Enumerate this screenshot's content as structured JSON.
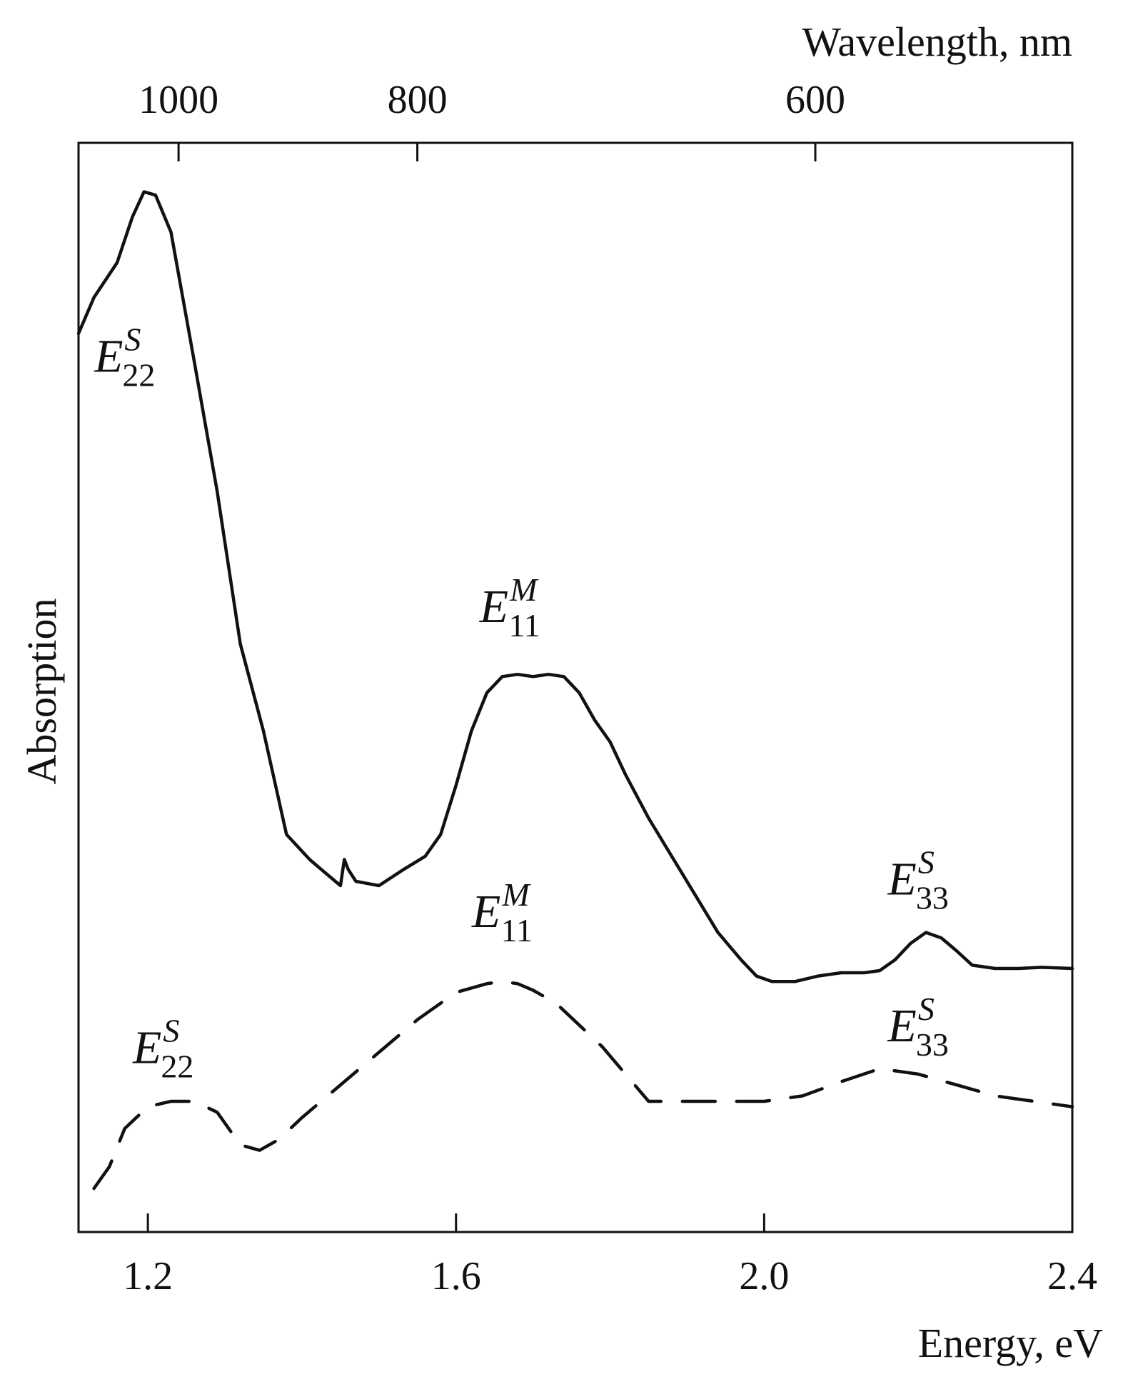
{
  "chart_data": {
    "type": "line",
    "xlabel": "Energy, eV",
    "ylabel": "Absorption",
    "top_axis_label": "Wavelength, nm",
    "xlim": [
      1.11,
      2.4
    ],
    "ylim": [
      0,
      1
    ],
    "x_ticks": [
      "1.2",
      "1.6",
      "2.0",
      "2.4"
    ],
    "x_tick_values": [
      1.2,
      1.6,
      2.0,
      2.4
    ],
    "top_ticks": [
      "1000",
      "800",
      "600"
    ],
    "top_tick_values_nm": [
      1000,
      800,
      600
    ],
    "grid": false,
    "series": [
      {
        "style": "solid",
        "color": "#111111",
        "x": [
          1.11,
          1.13,
          1.16,
          1.18,
          1.195,
          1.21,
          1.23,
          1.26,
          1.29,
          1.32,
          1.35,
          1.38,
          1.41,
          1.43,
          1.45,
          1.455,
          1.46,
          1.47,
          1.5,
          1.53,
          1.56,
          1.58,
          1.6,
          1.62,
          1.64,
          1.66,
          1.68,
          1.7,
          1.72,
          1.74,
          1.76,
          1.78,
          1.8,
          1.82,
          1.85,
          1.88,
          1.91,
          1.94,
          1.97,
          1.99,
          2.01,
          2.04,
          2.07,
          2.1,
          2.13,
          2.15,
          2.17,
          2.19,
          2.21,
          2.23,
          2.25,
          2.27,
          2.3,
          2.33,
          2.36,
          2.4
        ],
        "y": [
          0.825,
          0.858,
          0.89,
          0.932,
          0.955,
          0.952,
          0.918,
          0.8,
          0.68,
          0.54,
          0.46,
          0.365,
          0.342,
          0.33,
          0.318,
          0.342,
          0.333,
          0.322,
          0.318,
          0.332,
          0.345,
          0.365,
          0.41,
          0.46,
          0.495,
          0.51,
          0.512,
          0.51,
          0.512,
          0.51,
          0.495,
          0.47,
          0.45,
          0.42,
          0.38,
          0.345,
          0.31,
          0.275,
          0.25,
          0.235,
          0.23,
          0.23,
          0.235,
          0.238,
          0.238,
          0.24,
          0.25,
          0.265,
          0.275,
          0.27,
          0.258,
          0.245,
          0.242,
          0.242,
          0.243,
          0.242
        ]
      },
      {
        "style": "dashed",
        "color": "#111111",
        "x": [
          1.13,
          1.15,
          1.17,
          1.2,
          1.23,
          1.26,
          1.29,
          1.32,
          1.345,
          1.37,
          1.4,
          1.45,
          1.5,
          1.55,
          1.6,
          1.64,
          1.66,
          1.68,
          1.7,
          1.73,
          1.76,
          1.79,
          1.82,
          1.85,
          1.88,
          1.92,
          1.96,
          2.0,
          2.05,
          2.1,
          2.15,
          2.2,
          2.25,
          2.3,
          2.35,
          2.4
        ],
        "y": [
          0.04,
          0.06,
          0.095,
          0.115,
          0.12,
          0.12,
          0.11,
          0.08,
          0.075,
          0.085,
          0.105,
          0.135,
          0.165,
          0.195,
          0.22,
          0.228,
          0.23,
          0.228,
          0.222,
          0.21,
          0.19,
          0.17,
          0.145,
          0.12,
          0.12,
          0.12,
          0.12,
          0.12,
          0.125,
          0.138,
          0.15,
          0.145,
          0.135,
          0.125,
          0.12,
          0.115
        ]
      }
    ],
    "annotations": [
      {
        "series": 0,
        "peak": "E22",
        "main": "E",
        "sup": "S",
        "sub": "22",
        "x": 1.17,
        "y": 0.79
      },
      {
        "series": 0,
        "peak": "E11",
        "main": "E",
        "sup": "M",
        "sub": "11",
        "x": 1.67,
        "y": 0.56
      },
      {
        "series": 0,
        "peak": "E33",
        "main": "E",
        "sup": "S",
        "sub": "33",
        "x": 2.2,
        "y": 0.31
      },
      {
        "series": 1,
        "peak": "E22",
        "main": "E",
        "sup": "S",
        "sub": "22",
        "x": 1.22,
        "y": 0.155
      },
      {
        "series": 1,
        "peak": "E11",
        "main": "E",
        "sup": "M",
        "sub": "11",
        "x": 1.66,
        "y": 0.28
      },
      {
        "series": 1,
        "peak": "E33",
        "main": "E",
        "sup": "S",
        "sub": "33",
        "x": 2.2,
        "y": 0.175
      }
    ]
  }
}
